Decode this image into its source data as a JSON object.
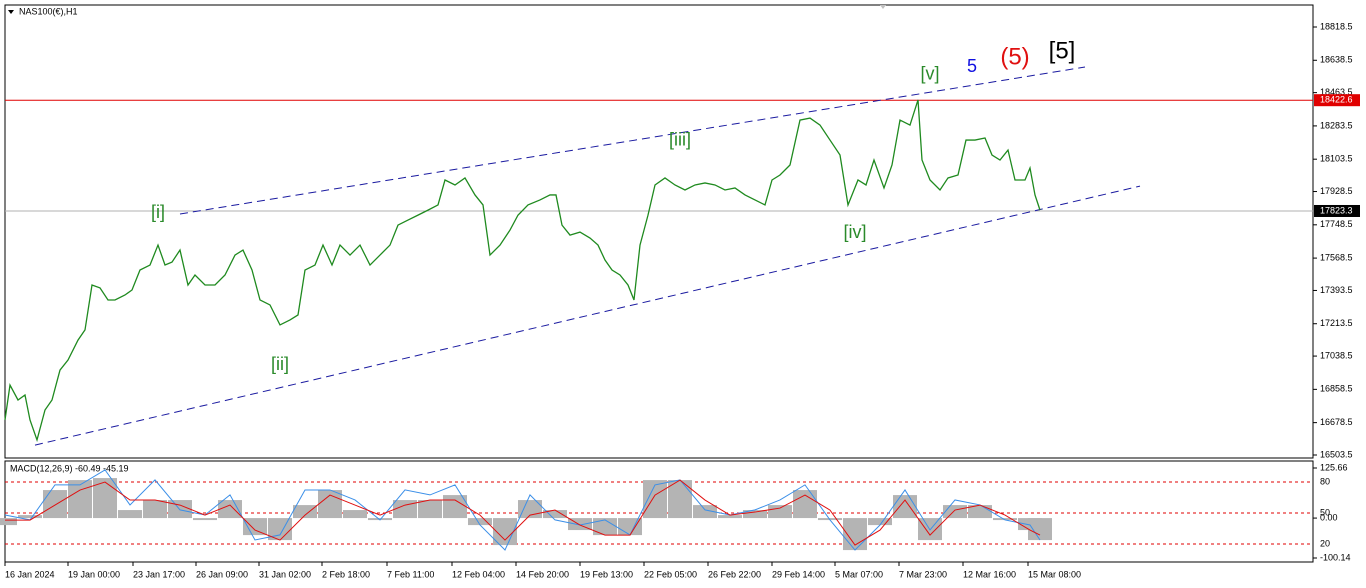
{
  "chart_data": [
    {
      "type": "line",
      "title": "NAS100(€),H1",
      "color": "#1f8a1f",
      "x": [
        0,
        5,
        13,
        20,
        25,
        32,
        40,
        47,
        55,
        63,
        73,
        80,
        87,
        95,
        103,
        110,
        120,
        127,
        135,
        145,
        153,
        160,
        167,
        175,
        183,
        190,
        200,
        210,
        220,
        230,
        238,
        247,
        255,
        265,
        275,
        285,
        293,
        300,
        310,
        318,
        327,
        335,
        345,
        355,
        365,
        375,
        385,
        393,
        403,
        413,
        423,
        433,
        440,
        450,
        460,
        470,
        478,
        485,
        495,
        505,
        513,
        523,
        535,
        545,
        551,
        557,
        565,
        575,
        585,
        593,
        600,
        607,
        615,
        623,
        629,
        635,
        643,
        650,
        660,
        670,
        680,
        690,
        700,
        710,
        720,
        730,
        740,
        750,
        760,
        767,
        775,
        785,
        795,
        805,
        815,
        825,
        835,
        843,
        853,
        861,
        869,
        879,
        887,
        895,
        905,
        913,
        917,
        925,
        935,
        943,
        953,
        961,
        970,
        980,
        987,
        995,
        1003,
        1010,
        1020,
        1025,
        1030,
        1035
      ],
      "values": [
        16693,
        16882,
        16801,
        16828,
        16693,
        16585,
        16747,
        16801,
        16963,
        17017,
        17125,
        17180,
        17423,
        17407,
        17342,
        17342,
        17369,
        17396,
        17504,
        17531,
        17639,
        17531,
        17547,
        17612,
        17423,
        17477,
        17423,
        17423,
        17477,
        17585,
        17612,
        17504,
        17342,
        17315,
        17207,
        17234,
        17261,
        17504,
        17531,
        17639,
        17531,
        17639,
        17585,
        17639,
        17531,
        17585,
        17639,
        17747,
        17774,
        17801,
        17828,
        17856,
        17991,
        17964,
        18002,
        17910,
        17856,
        17585,
        17639,
        17720,
        17801,
        17856,
        17883,
        17910,
        17910,
        17747,
        17693,
        17709,
        17677,
        17639,
        17558,
        17504,
        17477,
        17423,
        17342,
        17639,
        17801,
        17964,
        18002,
        17964,
        17937,
        17964,
        17975,
        17964,
        17937,
        17948,
        17910,
        17883,
        17856,
        17991,
        18018,
        18072,
        18315,
        18326,
        18288,
        18207,
        18126,
        17856,
        17991,
        17964,
        18099,
        17948,
        18072,
        18315,
        18288,
        18424,
        18099,
        17991,
        17937,
        18002,
        18018,
        18207,
        18207,
        18218,
        18126,
        18099,
        18153,
        17991,
        17991,
        18056,
        17910,
        17828
      ],
      "xlim": [
        0,
        1308
      ],
      "xticks": [
        {
          "value": 0,
          "label": "16 Jan 2024"
        },
        {
          "value": 63,
          "label": "19 Jan 00:00"
        },
        {
          "value": 128,
          "label": "23 Jan 17:00"
        },
        {
          "value": 191,
          "label": "26 Jan 09:00"
        },
        {
          "value": 254,
          "label": "31 Jan 02:00"
        },
        {
          "value": 317,
          "label": "2 Feb 18:00"
        },
        {
          "value": 382,
          "label": "7 Feb 11:00"
        },
        {
          "value": 447,
          "label": "12 Feb 04:00"
        },
        {
          "value": 511,
          "label": "14 Feb 20:00"
        },
        {
          "value": 575,
          "label": "19 Feb 13:00"
        },
        {
          "value": 639,
          "label": "22 Feb 05:00"
        },
        {
          "value": 703,
          "label": "26 Feb 22:00"
        },
        {
          "value": 767,
          "label": "29 Feb 14:00"
        },
        {
          "value": 830,
          "label": "5 Mar 07:00"
        },
        {
          "value": 894,
          "label": "7 Mar 23:00"
        },
        {
          "value": 958,
          "label": "12 Mar 16:00"
        },
        {
          "value": 1023,
          "label": "15 Mar 08:00"
        }
      ],
      "ylim": [
        16487.2,
        18937.5
      ],
      "yticks": [
        18818.5,
        18638.5,
        18463.5,
        18283.5,
        18103.5,
        17928.5,
        17748.5,
        17568.5,
        17393.5,
        17213.5,
        17038.5,
        16858.5,
        16678.5,
        16503.5
      ],
      "price_lines": [
        {
          "value": 18422.6,
          "color": "#e00000"
        },
        {
          "value": 17823.3,
          "color": "#b0b0b0"
        }
      ],
      "trendlines": {
        "color": "#1a1aa0",
        "lines": [
          {
            "x": [
              175,
              1080
            ],
            "values": [
              17807,
              18602
            ]
          },
          {
            "x": [
              30,
              1135
            ],
            "values": [
              16557,
              17958
            ]
          }
        ]
      },
      "annotations": [
        {
          "text": "[i]",
          "x": 153,
          "y": 17812,
          "color": "#2a8a2a"
        },
        {
          "text": "[ii]",
          "x": 275,
          "y": 16990,
          "color": "#2a8a2a"
        },
        {
          "text": "[iii]",
          "x": 675,
          "y": 18202,
          "color": "#2a8a2a"
        },
        {
          "text": "[iv]",
          "x": 850,
          "y": 17704,
          "color": "#2a8a2a"
        },
        {
          "text": "[v]",
          "x": 925,
          "y": 18559,
          "color": "#2a8a2a"
        },
        {
          "text": "5",
          "x": 967,
          "y": 18602,
          "color": "#1010e0"
        },
        {
          "text": "(5)",
          "x": 1010,
          "y": 18651,
          "color": "#e01010"
        },
        {
          "text": "[5]",
          "x": 1057,
          "y": 18683,
          "color": "#000000"
        }
      ]
    },
    {
      "type": "indicator",
      "title": "MACD(12,26,9) -60.49 -45.19",
      "x": [
        0,
        25,
        50,
        75,
        100,
        125,
        150,
        175,
        200,
        225,
        250,
        275,
        300,
        325,
        350,
        375,
        400,
        425,
        450,
        475,
        500,
        525,
        550,
        575,
        600,
        625,
        650,
        675,
        700,
        725,
        750,
        775,
        800,
        825,
        850,
        875,
        900,
        925,
        950,
        975,
        1000,
        1025,
        1035
      ],
      "histogram": {
        "color": "#b4b4b4",
        "values": [
          -17.6,
          7.5,
          70.3,
          95.3,
          100.4,
          20.1,
          45.2,
          45.2,
          -5.0,
          45.2,
          -42.7,
          -55.2,
          32.6,
          70.3,
          20.1,
          -5.0,
          45.2,
          45.2,
          57.7,
          -17.6,
          -67.7,
          45.2,
          20.1,
          -30.1,
          -42.7,
          -42.7,
          95.3,
          95.3,
          32.6,
          7.5,
          20.1,
          32.6,
          70.3,
          -5.0,
          -80.3,
          -17.6,
          57.7,
          -55.2,
          32.6,
          32.6,
          -5.0,
          -30.1,
          -55.2
        ]
      },
      "signal": {
        "color": "#e01010",
        "values": [
          -5.0,
          -5.0,
          32.6,
          70.3,
          90.3,
          45.2,
          45.2,
          32.6,
          7.5,
          32.6,
          -30.1,
          -55.2,
          7.5,
          57.7,
          32.6,
          7.5,
          32.6,
          45.2,
          45.2,
          7.5,
          -55.2,
          7.5,
          20.1,
          -17.6,
          -42.7,
          -42.7,
          57.7,
          95.3,
          45.2,
          7.5,
          15.1,
          25.1,
          57.7,
          20.1,
          -67.7,
          -30.1,
          45.2,
          -42.7,
          20.1,
          32.6,
          7.5,
          -30.1,
          -42.7
        ]
      },
      "oscillator": {
        "color": "#3b8fe8",
        "axis": "y2",
        "values": [
          48.1,
          43.3,
          77.2,
          77.2,
          91.7,
          57.8,
          82.0,
          53.0,
          48.1,
          67.5,
          23.9,
          28.8,
          72.3,
          72.3,
          62.6,
          43.3,
          72.3,
          67.5,
          77.2,
          38.4,
          14.2,
          67.5,
          43.3,
          38.4,
          43.3,
          28.8,
          77.2,
          82.0,
          53.0,
          48.1,
          53.0,
          62.6,
          77.2,
          43.3,
          14.2,
          38.4,
          72.3,
          33.6,
          62.6,
          57.8,
          43.3,
          38.4,
          23.9
        ]
      },
      "xlim": [
        0,
        1308
      ],
      "ylim": [
        -110.2,
        143.2
      ],
      "yticks": [
        125.66,
        {
          "value": 0,
          "label": "0.00"
        },
        -100.14
      ],
      "y2lim": [
        2.6,
        100.3
      ],
      "y2ticks": [
        80,
        50,
        20
      ]
    }
  ]
}
